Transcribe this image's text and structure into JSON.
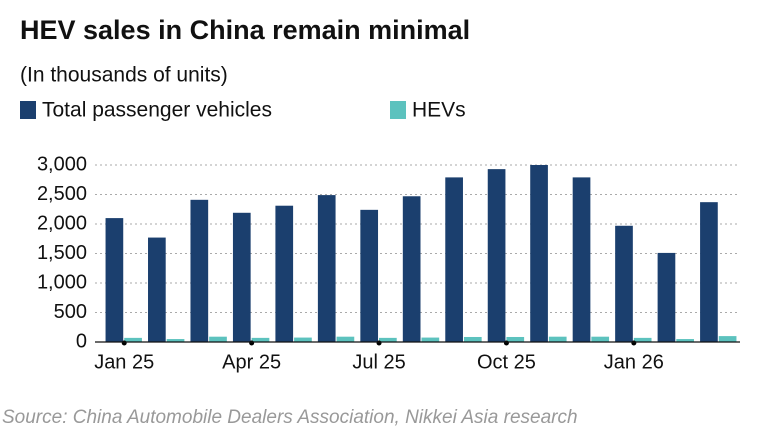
{
  "chart_data": {
    "type": "bar",
    "title": "HEV sales in China remain minimal",
    "subtitle": "(In thousands of units)",
    "source": "Source: China Automobile Dealers Association, Nikkei Asia research",
    "categories": [
      "Jan 25",
      null,
      null,
      "Apr 25",
      null,
      null,
      "Jul 25",
      null,
      null,
      "Oct 25",
      null,
      null,
      "Jan 26",
      null,
      null
    ],
    "series": [
      {
        "name": "Total passenger vehicles",
        "color": "#1b3f6e",
        "values": [
          2100,
          1770,
          2410,
          2190,
          2310,
          2490,
          2240,
          2470,
          2790,
          2930,
          3000,
          2790,
          1970,
          1510,
          2370
        ]
      },
      {
        "name": "HEVs",
        "color": "#5cc2be",
        "values": [
          70,
          50,
          90,
          70,
          75,
          90,
          70,
          75,
          85,
          85,
          90,
          90,
          70,
          50,
          100
        ]
      }
    ],
    "ylim": [
      0,
      3000
    ],
    "yticks": [
      0,
      500,
      {
        "value": 1000,
        "label": "1,000"
      },
      {
        "value": 1500,
        "label": "1,500"
      },
      {
        "value": 2000,
        "label": "2,000"
      },
      {
        "value": 2500,
        "label": "2,500"
      },
      {
        "value": 3000,
        "label": "3,000"
      }
    ],
    "grid": true
  }
}
